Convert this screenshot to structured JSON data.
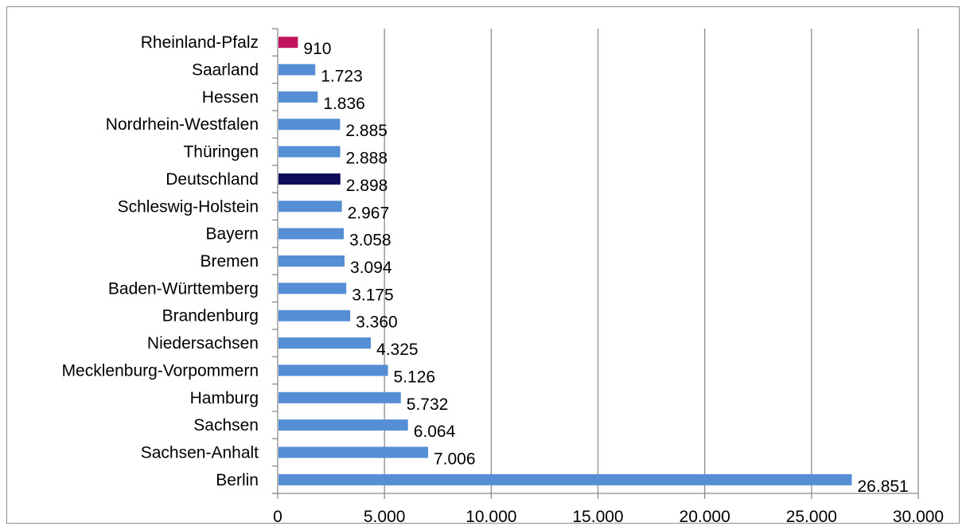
{
  "chart_data": {
    "type": "bar",
    "orientation": "horizontal",
    "title": "",
    "xlabel": "",
    "ylabel": "",
    "xlim": [
      0,
      30000
    ],
    "ticks": [
      0,
      5000,
      10000,
      15000,
      20000,
      25000,
      30000
    ],
    "tick_labels": [
      "0",
      "5.000",
      "10.000",
      "15.000",
      "20.000",
      "25.000",
      "30.000"
    ],
    "grid": "vertical",
    "legend": "none",
    "categories": [
      "Rheinland-Pfalz",
      "Saarland",
      "Hessen",
      "Nordrhein-Westfalen",
      "Thüringen",
      "Deutschland",
      "Schleswig-Holstein",
      "Bayern",
      "Bremen",
      "Baden-Württemberg",
      "Brandenburg",
      "Niedersachsen",
      "Mecklenburg-Vorpommern",
      "Hamburg",
      "Sachsen",
      "Sachsen-Anhalt",
      "Berlin"
    ],
    "values": [
      910,
      1723,
      1836,
      2885,
      2888,
      2898,
      2967,
      3058,
      3094,
      3175,
      3360,
      4325,
      5126,
      5732,
      6064,
      7006,
      26851
    ],
    "value_labels": [
      "910",
      "1.723",
      "1.836",
      "2.885",
      "2.888",
      "2.898",
      "2.967",
      "3.058",
      "3.094",
      "3.175",
      "3.360",
      "4.325",
      "5.126",
      "5.732",
      "6.064",
      "7.006",
      "26.851"
    ],
    "colors": {
      "default": "#558ed5",
      "Rheinland-Pfalz": "#c0145e",
      "Deutschland": "#0d0d5c",
      "grid": "#8c8c8c",
      "axis": "#8c8c8c",
      "frame": "#8c8c8c"
    }
  }
}
